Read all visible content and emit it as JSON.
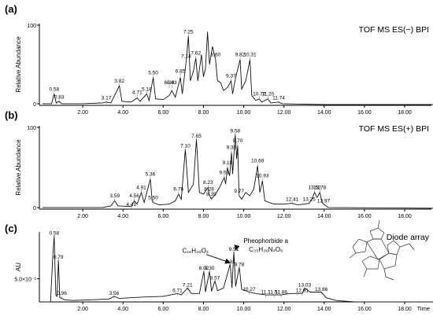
{
  "chart_data": [
    {
      "type": "line",
      "panel_label": "(a)",
      "title": "TOF MS ES(−) BPI",
      "xlabel": "",
      "ylabel": "Relative Abundance",
      "xlim": [
        0.0,
        19.5
      ],
      "ylim": [
        0,
        100
      ],
      "x_ticks": [
        "2.00",
        "4.00",
        "6.00",
        "8.00",
        "10.00",
        "12.00",
        "14.00",
        "16.00",
        "18.00"
      ],
      "y_ticks": [
        "0",
        "100"
      ],
      "peak_labels": [
        {
          "x": 0.58,
          "label": "0.58",
          "y": 18
        },
        {
          "x": 0.83,
          "label": "0.83",
          "y": 8
        },
        {
          "x": 3.17,
          "label": "3.17",
          "y": 7
        },
        {
          "x": 3.82,
          "label": "3.82",
          "y": 28
        },
        {
          "x": 4.71,
          "label": "4.71",
          "y": 14
        },
        {
          "x": 5.18,
          "label": "5.18",
          "y": 18
        },
        {
          "x": 5.5,
          "label": "5.50",
          "y": 38
        },
        {
          "x": 6.43,
          "label": "6.43",
          "y": 26
        },
        {
          "x": 6.85,
          "label": "6.85",
          "y": 40
        },
        {
          "x": 6.3,
          "label": "6.30",
          "y": 26
        },
        {
          "x": 7.14,
          "label": "7.14",
          "y": 58
        },
        {
          "x": 7.25,
          "label": "7.25",
          "y": 88
        },
        {
          "x": 7.62,
          "label": "7.62",
          "y": 62
        },
        {
          "x": 8.6,
          "label": "8.60",
          "y": 60
        },
        {
          "x": 9.37,
          "label": "9.37",
          "y": 34
        },
        {
          "x": 9.82,
          "label": "9.82",
          "y": 60
        },
        {
          "x": 10.31,
          "label": "10.31",
          "y": 60
        },
        {
          "x": 10.77,
          "label": "10.77",
          "y": 12
        },
        {
          "x": 11.2,
          "label": "11.20",
          "y": 12
        },
        {
          "x": 11.74,
          "label": "11.74",
          "y": 7
        }
      ],
      "trace": [
        [
          0.0,
          2
        ],
        [
          0.45,
          2
        ],
        [
          0.58,
          14
        ],
        [
          0.68,
          3
        ],
        [
          0.83,
          5
        ],
        [
          0.95,
          2
        ],
        [
          2.0,
          2
        ],
        [
          3.0,
          3
        ],
        [
          3.17,
          4
        ],
        [
          3.4,
          3
        ],
        [
          3.82,
          24
        ],
        [
          3.95,
          5
        ],
        [
          4.4,
          4
        ],
        [
          4.71,
          9
        ],
        [
          4.85,
          5
        ],
        [
          5.18,
          14
        ],
        [
          5.3,
          6
        ],
        [
          5.5,
          34
        ],
        [
          5.62,
          8
        ],
        [
          6.0,
          7
        ],
        [
          6.3,
          12
        ],
        [
          6.43,
          18
        ],
        [
          6.6,
          10
        ],
        [
          6.85,
          34
        ],
        [
          6.95,
          14
        ],
        [
          7.14,
          54
        ],
        [
          7.25,
          85
        ],
        [
          7.35,
          30
        ],
        [
          7.5,
          42
        ],
        [
          7.62,
          58
        ],
        [
          7.72,
          30
        ],
        [
          7.9,
          62
        ],
        [
          8.0,
          35
        ],
        [
          8.1,
          45
        ],
        [
          8.2,
          90
        ],
        [
          8.3,
          50
        ],
        [
          8.45,
          72
        ],
        [
          8.6,
          56
        ],
        [
          8.7,
          30
        ],
        [
          8.85,
          28
        ],
        [
          9.0,
          18
        ],
        [
          9.2,
          22
        ],
        [
          9.37,
          30
        ],
        [
          9.45,
          14
        ],
        [
          9.6,
          34
        ],
        [
          9.82,
          56
        ],
        [
          9.9,
          20
        ],
        [
          10.1,
          30
        ],
        [
          10.31,
          56
        ],
        [
          10.4,
          12
        ],
        [
          10.6,
          6
        ],
        [
          10.77,
          8
        ],
        [
          10.9,
          4
        ],
        [
          11.2,
          8
        ],
        [
          11.35,
          3
        ],
        [
          11.74,
          4
        ],
        [
          11.9,
          2
        ],
        [
          14.0,
          1
        ],
        [
          19.5,
          1
        ]
      ]
    },
    {
      "type": "line",
      "panel_label": "(b)",
      "title": "TOF MS ES(+) BPI",
      "xlabel": "",
      "ylabel": "Relative Abundance",
      "xlim": [
        0.0,
        19.5
      ],
      "ylim": [
        0,
        100
      ],
      "x_ticks": [
        "2.00",
        "4.00",
        "6.00",
        "8.00",
        "10.00",
        "12.00",
        "14.00",
        "16.00",
        "18.00"
      ],
      "y_ticks": [
        "0",
        "100"
      ],
      "peak_labels": [
        {
          "x": 3.59,
          "label": "3.59",
          "y": 14
        },
        {
          "x": 4.41,
          "label": "4.41",
          "y": 4
        },
        {
          "x": 4.56,
          "label": "4.56",
          "y": 14
        },
        {
          "x": 4.91,
          "label": "4.91",
          "y": 24
        },
        {
          "x": 5.36,
          "label": "5.36",
          "y": 40
        },
        {
          "x": 5.5,
          "label": "5.50",
          "y": 12
        },
        {
          "x": 6.76,
          "label": "6.76",
          "y": 22
        },
        {
          "x": 7.1,
          "label": "7.10",
          "y": 74
        },
        {
          "x": 7.65,
          "label": "7.65",
          "y": 86
        },
        {
          "x": 8.23,
          "label": "8.23",
          "y": 30
        },
        {
          "x": 8.28,
          "label": "8.28",
          "y": 22
        },
        {
          "x": 8.39,
          "label": "8.39",
          "y": 16
        },
        {
          "x": 9.03,
          "label": "9.03",
          "y": 42
        },
        {
          "x": 9.19,
          "label": "9.19",
          "y": 54
        },
        {
          "x": 9.39,
          "label": "9.39",
          "y": 72
        },
        {
          "x": 9.58,
          "label": "9.58",
          "y": 92
        },
        {
          "x": 9.7,
          "label": "9.70",
          "y": 80
        },
        {
          "x": 9.77,
          "label": "9.77",
          "y": 20
        },
        {
          "x": 10.69,
          "label": "10.69",
          "y": 56
        },
        {
          "x": 10.93,
          "label": "10.93",
          "y": 38
        },
        {
          "x": 12.41,
          "label": "12.41",
          "y": 10
        },
        {
          "x": 13.25,
          "label": "13.25",
          "y": 10
        },
        {
          "x": 13.52,
          "label": "13.52",
          "y": 24
        },
        {
          "x": 13.78,
          "label": "13.78",
          "y": 24
        },
        {
          "x": 13.97,
          "label": "13.97",
          "y": 8
        }
      ],
      "trace": [
        [
          0.0,
          2
        ],
        [
          3.0,
          2
        ],
        [
          3.4,
          4
        ],
        [
          3.59,
          10
        ],
        [
          3.75,
          4
        ],
        [
          4.41,
          3
        ],
        [
          4.56,
          10
        ],
        [
          4.7,
          6
        ],
        [
          4.91,
          20
        ],
        [
          5.05,
          8
        ],
        [
          5.36,
          36
        ],
        [
          5.45,
          10
        ],
        [
          5.5,
          8
        ],
        [
          5.8,
          5
        ],
        [
          6.3,
          6
        ],
        [
          6.6,
          10
        ],
        [
          6.76,
          18
        ],
        [
          6.9,
          12
        ],
        [
          7.1,
          72
        ],
        [
          7.25,
          20
        ],
        [
          7.5,
          30
        ],
        [
          7.65,
          84
        ],
        [
          7.8,
          20
        ],
        [
          8.0,
          18
        ],
        [
          8.23,
          26
        ],
        [
          8.28,
          18
        ],
        [
          8.39,
          12
        ],
        [
          8.6,
          18
        ],
        [
          8.8,
          26
        ],
        [
          9.03,
          38
        ],
        [
          9.1,
          30
        ],
        [
          9.19,
          50
        ],
        [
          9.3,
          40
        ],
        [
          9.39,
          68
        ],
        [
          9.45,
          42
        ],
        [
          9.58,
          90
        ],
        [
          9.65,
          60
        ],
        [
          9.7,
          76
        ],
        [
          9.77,
          16
        ],
        [
          9.9,
          12
        ],
        [
          10.1,
          20
        ],
        [
          10.3,
          16
        ],
        [
          10.5,
          24
        ],
        [
          10.69,
          52
        ],
        [
          10.8,
          20
        ],
        [
          10.93,
          34
        ],
        [
          11.05,
          10
        ],
        [
          11.5,
          6
        ],
        [
          12.0,
          6
        ],
        [
          12.41,
          7
        ],
        [
          12.7,
          5
        ],
        [
          13.0,
          6
        ],
        [
          13.25,
          7
        ],
        [
          13.4,
          12
        ],
        [
          13.52,
          20
        ],
        [
          13.65,
          14
        ],
        [
          13.78,
          20
        ],
        [
          13.9,
          8
        ],
        [
          13.97,
          6
        ],
        [
          14.2,
          2
        ],
        [
          19.5,
          1
        ]
      ]
    },
    {
      "type": "line",
      "panel_label": "(c)",
      "title": "Diode array",
      "xlabel": "Time",
      "ylabel": "AU",
      "xlim": [
        0.0,
        19.5
      ],
      "ylim": [
        0,
        1.0
      ],
      "x_ticks": [
        "2.00",
        "4.00",
        "6.00",
        "8.00",
        "10.00",
        "12.00",
        "14.00",
        "16.00",
        "18.00"
      ],
      "y_ticks": [
        "5.0×10⁻¹"
      ],
      "peak_labels": [
        {
          "x": 0.58,
          "label": "0.58",
          "y": 0.96
        },
        {
          "x": 0.79,
          "label": "0.79",
          "y": 0.62
        },
        {
          "x": 0.96,
          "label": "0.96",
          "y": 0.1
        },
        {
          "x": 3.56,
          "label": "3.56",
          "y": 0.1
        },
        {
          "x": 6.71,
          "label": "6.71",
          "y": 0.14
        },
        {
          "x": 7.21,
          "label": "7.21",
          "y": 0.22
        },
        {
          "x": 8.02,
          "label": "8.02",
          "y": 0.46
        },
        {
          "x": 8.3,
          "label": "8.30",
          "y": 0.46
        },
        {
          "x": 8.57,
          "label": "8.57",
          "y": 0.32
        },
        {
          "x": 9.33,
          "label": "9.33",
          "y": 0.55
        },
        {
          "x": 9.51,
          "label": "9.51",
          "y": 0.73
        },
        {
          "x": 9.78,
          "label": "9.78",
          "y": 0.51
        },
        {
          "x": 10.27,
          "label": "10.27",
          "y": 0.16
        },
        {
          "x": 11.1,
          "label": "11.1",
          "y": 0.12
        },
        {
          "x": 11.51,
          "label": "11.51",
          "y": 0.12
        },
        {
          "x": 11.86,
          "label": "11.86",
          "y": 0.12
        },
        {
          "x": 12.91,
          "label": "12.91",
          "y": 0.14
        },
        {
          "x": 13.03,
          "label": "13.03",
          "y": 0.22
        },
        {
          "x": 13.86,
          "label": "13.86",
          "y": 0.16
        }
      ],
      "annotations": [
        {
          "text": "C₁₆H₃₀O₂",
          "x": 7.6,
          "y": 0.7,
          "target_x": 9.33,
          "target_y": 0.56
        },
        {
          "text": "Pheophorbide a",
          "x": 11.1,
          "y": 0.84
        },
        {
          "text": "C₃₅H₃₆N₄O₅",
          "x": 11.1,
          "y": 0.72,
          "target_x": 9.6,
          "target_y": 0.74
        }
      ],
      "trace": [
        [
          0.0,
          0.0
        ],
        [
          0.4,
          0.0
        ],
        [
          0.5,
          0.6
        ],
        [
          0.58,
          0.95
        ],
        [
          0.66,
          0.1
        ],
        [
          0.72,
          0.08
        ],
        [
          0.79,
          0.6
        ],
        [
          0.86,
          0.06
        ],
        [
          0.96,
          0.05
        ],
        [
          1.1,
          0.03
        ],
        [
          1.5,
          0.02
        ],
        [
          3.3,
          0.04
        ],
        [
          3.56,
          0.08
        ],
        [
          3.8,
          0.05
        ],
        [
          5.0,
          0.07
        ],
        [
          6.0,
          0.08
        ],
        [
          6.71,
          0.12
        ],
        [
          6.9,
          0.1
        ],
        [
          7.21,
          0.2
        ],
        [
          7.4,
          0.12
        ],
        [
          7.8,
          0.12
        ],
        [
          8.02,
          0.44
        ],
        [
          8.1,
          0.14
        ],
        [
          8.3,
          0.44
        ],
        [
          8.4,
          0.15
        ],
        [
          8.57,
          0.3
        ],
        [
          8.7,
          0.16
        ],
        [
          9.0,
          0.2
        ],
        [
          9.33,
          0.54
        ],
        [
          9.42,
          0.2
        ],
        [
          9.51,
          0.72
        ],
        [
          9.6,
          0.22
        ],
        [
          9.78,
          0.5
        ],
        [
          9.9,
          0.18
        ],
        [
          10.27,
          0.14
        ],
        [
          10.6,
          0.12
        ],
        [
          11.1,
          0.1
        ],
        [
          11.51,
          0.1
        ],
        [
          11.86,
          0.1
        ],
        [
          12.3,
          0.12
        ],
        [
          12.91,
          0.12
        ],
        [
          13.03,
          0.2
        ],
        [
          13.3,
          0.14
        ],
        [
          13.86,
          0.14
        ],
        [
          14.1,
          0.06
        ],
        [
          14.6,
          0.02
        ],
        [
          15.5,
          0.0
        ],
        [
          19.5,
          0.0
        ]
      ]
    }
  ]
}
